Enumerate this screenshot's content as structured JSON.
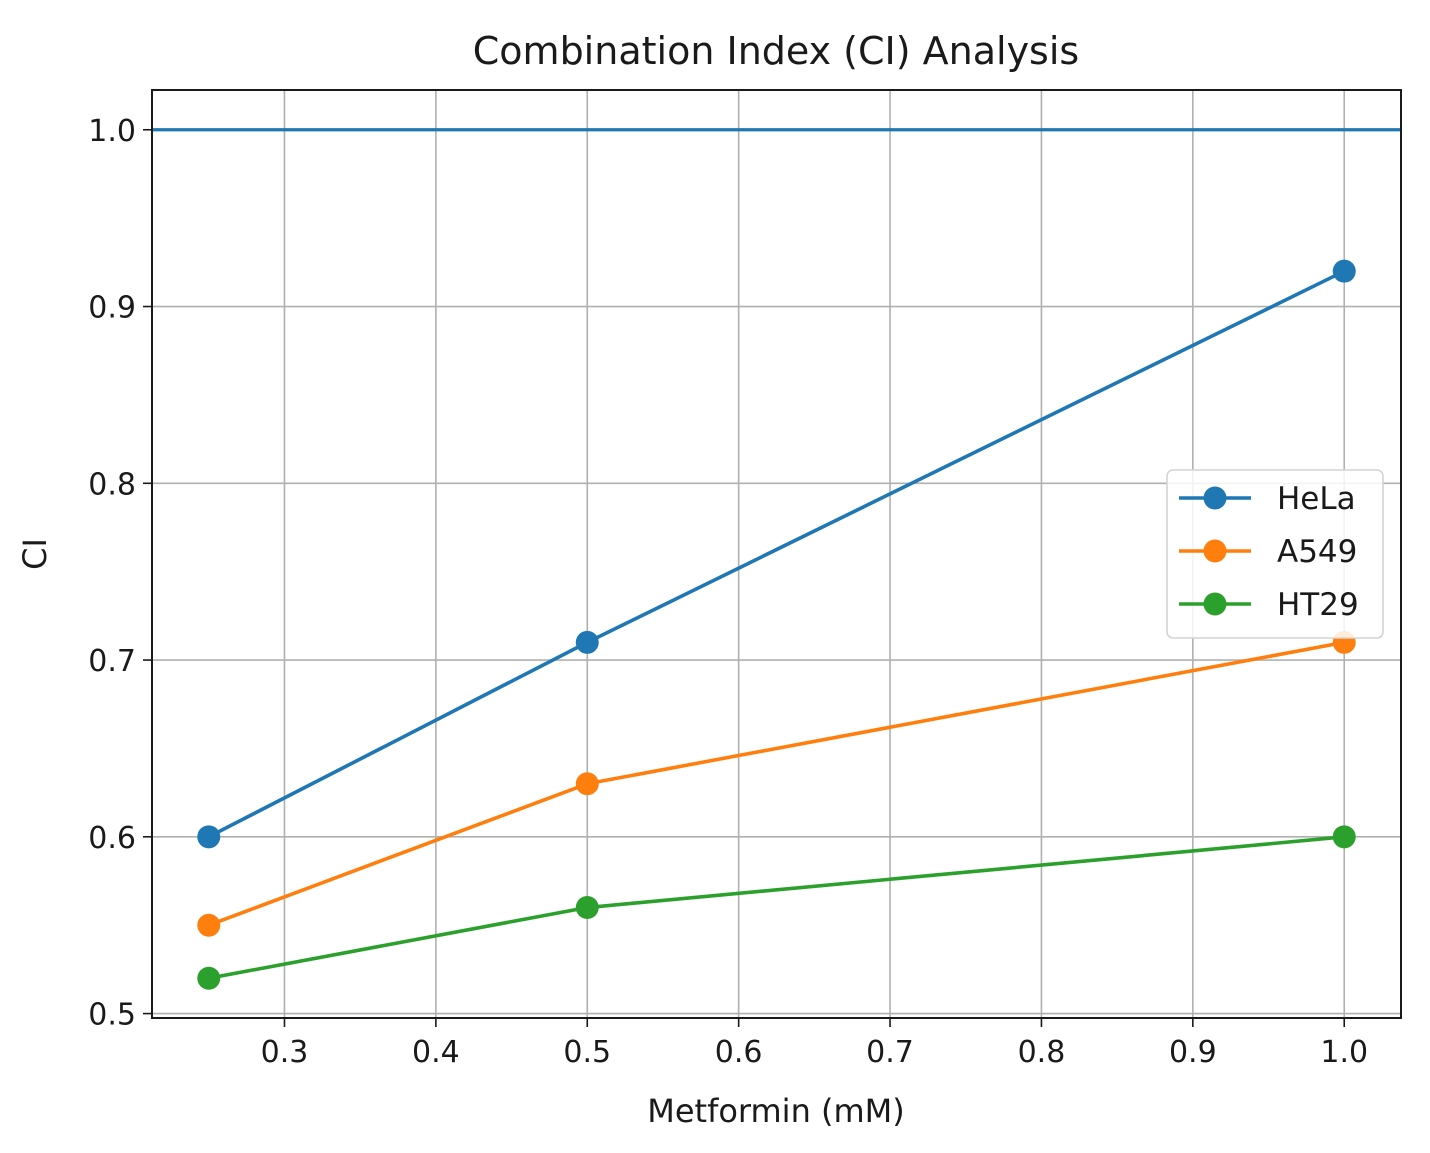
{
  "chart_data": {
    "type": "line",
    "title": "Combination Index (CI) Analysis",
    "xlabel": "Metformin (mM)",
    "ylabel": "CI",
    "x": [
      0.25,
      0.5,
      1.0
    ],
    "series": [
      {
        "name": "HeLa",
        "values": [
          0.6,
          0.71,
          0.92
        ],
        "color": "#1f77b4"
      },
      {
        "name": "A549",
        "values": [
          0.55,
          0.63,
          0.71
        ],
        "color": "#ff7f0e"
      },
      {
        "name": "HT29",
        "values": [
          0.52,
          0.56,
          0.6
        ],
        "color": "#2ca02c"
      }
    ],
    "reference_line": {
      "y": 1.0,
      "color": "#1f77b4"
    },
    "xlim": [
      0.2125,
      1.0375
    ],
    "ylim": [
      0.4975,
      1.0225
    ],
    "xticks": [
      "0.3",
      "0.4",
      "0.5",
      "0.6",
      "0.7",
      "0.8",
      "0.9",
      "1.0"
    ],
    "yticks": [
      "0.5",
      "0.6",
      "0.7",
      "0.8",
      "0.9",
      "1.0"
    ],
    "grid": true,
    "legend": "center-right"
  }
}
